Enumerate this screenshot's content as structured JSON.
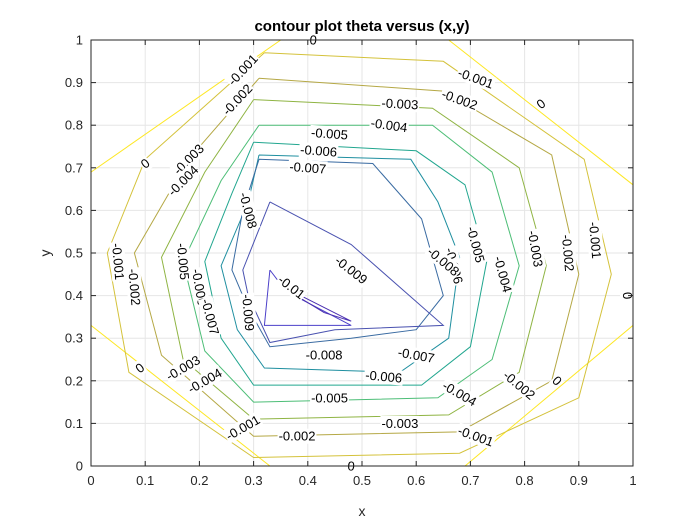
{
  "chart_data": {
    "type": "contour",
    "title": "contour plot theta versus (x,y)",
    "xlabel": "x",
    "ylabel": "y",
    "xlim": [
      0,
      1
    ],
    "ylim": [
      0,
      1
    ],
    "xticks": [
      "0",
      "0.1",
      "0.2",
      "0.3",
      "0.4",
      "0.5",
      "0.6",
      "0.7",
      "0.8",
      "0.9",
      "1"
    ],
    "yticks": [
      "0",
      "0.1",
      "0.2",
      "0.3",
      "0.4",
      "0.5",
      "0.6",
      "0.7",
      "0.8",
      "0.9",
      "1"
    ],
    "grid": true,
    "levels": [
      {
        "value": 0,
        "label": "0",
        "color": "#fde725",
        "points": [
          [
            0.35,
            1.0
          ],
          [
            0.66,
            1.0
          ],
          [
            1.0,
            0.66
          ],
          [
            1.0,
            0.33
          ],
          [
            0.69,
            0.0
          ],
          [
            0.33,
            0.0
          ],
          [
            0.0,
            0.33
          ],
          [
            0.0,
            0.69
          ],
          [
            0.35,
            1.0
          ]
        ],
        "labels": [
          [
            0.41,
            1.0,
            -5
          ],
          [
            0.83,
            0.85,
            38
          ],
          [
            0.1,
            0.71,
            38
          ],
          [
            0.99,
            0.4,
            -85
          ],
          [
            0.09,
            0.23,
            38
          ],
          [
            0.48,
            0.0,
            -4
          ],
          [
            0.86,
            0.2,
            -45
          ]
        ]
      },
      {
        "value": -0.001,
        "label": "-0.001",
        "color": "#d4c23b",
        "points": [
          [
            0.32,
            0.97
          ],
          [
            0.65,
            0.95
          ],
          [
            0.91,
            0.72
          ],
          [
            0.96,
            0.45
          ],
          [
            0.9,
            0.16
          ],
          [
            0.68,
            0.03
          ],
          [
            0.3,
            0.02
          ],
          [
            0.07,
            0.22
          ],
          [
            0.03,
            0.5
          ],
          [
            0.1,
            0.72
          ],
          [
            0.32,
            0.97
          ]
        ],
        "labels": [
          [
            0.28,
            0.93,
            47
          ],
          [
            0.71,
            0.91,
            -20
          ],
          [
            0.93,
            0.53,
            -85
          ],
          [
            0.05,
            0.48,
            -85
          ],
          [
            0.28,
            0.09,
            30
          ],
          [
            0.71,
            0.07,
            -20
          ]
        ]
      },
      {
        "value": -0.002,
        "label": "-0.002",
        "color": "#b5a845",
        "points": [
          [
            0.31,
            0.91
          ],
          [
            0.65,
            0.88
          ],
          [
            0.85,
            0.73
          ],
          [
            0.9,
            0.45
          ],
          [
            0.85,
            0.2
          ],
          [
            0.68,
            0.08
          ],
          [
            0.3,
            0.07
          ],
          [
            0.13,
            0.26
          ],
          [
            0.08,
            0.5
          ],
          [
            0.18,
            0.72
          ],
          [
            0.31,
            0.91
          ]
        ],
        "labels": [
          [
            0.27,
            0.86,
            47
          ],
          [
            0.68,
            0.86,
            -20
          ],
          [
            0.88,
            0.5,
            -85
          ],
          [
            0.08,
            0.42,
            -85
          ],
          [
            0.38,
            0.07,
            0
          ],
          [
            0.79,
            0.19,
            -40
          ]
        ]
      },
      {
        "value": -0.003,
        "label": "-0.003",
        "color": "#8fb443",
        "points": [
          [
            0.3,
            0.86
          ],
          [
            0.63,
            0.84
          ],
          [
            0.79,
            0.7
          ],
          [
            0.84,
            0.47
          ],
          [
            0.79,
            0.22
          ],
          [
            0.66,
            0.12
          ],
          [
            0.3,
            0.11
          ],
          [
            0.17,
            0.25
          ],
          [
            0.13,
            0.49
          ],
          [
            0.21,
            0.69
          ],
          [
            0.3,
            0.86
          ]
        ],
        "labels": [
          [
            0.57,
            0.85,
            -3
          ],
          [
            0.18,
            0.72,
            45
          ],
          [
            0.82,
            0.51,
            -80
          ],
          [
            0.57,
            0.1,
            0
          ],
          [
            0.17,
            0.23,
            30
          ]
        ]
      },
      {
        "value": -0.004,
        "label": "-0.004",
        "color": "#4dbe77",
        "points": [
          [
            0.31,
            0.8
          ],
          [
            0.63,
            0.8
          ],
          [
            0.74,
            0.69
          ],
          [
            0.79,
            0.47
          ],
          [
            0.74,
            0.25
          ],
          [
            0.64,
            0.16
          ],
          [
            0.3,
            0.15
          ],
          [
            0.21,
            0.27
          ],
          [
            0.17,
            0.48
          ],
          [
            0.24,
            0.67
          ],
          [
            0.31,
            0.8
          ]
        ],
        "labels": [
          [
            0.55,
            0.8,
            -8
          ],
          [
            0.17,
            0.67,
            45
          ],
          [
            0.76,
            0.45,
            -75
          ],
          [
            0.68,
            0.17,
            -30
          ],
          [
            0.21,
            0.2,
            30
          ]
        ]
      },
      {
        "value": -0.005,
        "label": "-0.005",
        "color": "#21a68f",
        "points": [
          [
            0.3,
            0.76
          ],
          [
            0.6,
            0.74
          ],
          [
            0.69,
            0.66
          ],
          [
            0.73,
            0.48
          ],
          [
            0.7,
            0.28
          ],
          [
            0.61,
            0.19
          ],
          [
            0.3,
            0.19
          ],
          [
            0.24,
            0.3
          ],
          [
            0.21,
            0.48
          ],
          [
            0.26,
            0.64
          ],
          [
            0.3,
            0.76
          ]
        ],
        "labels": [
          [
            0.44,
            0.78,
            -4
          ],
          [
            0.17,
            0.48,
            -85
          ],
          [
            0.71,
            0.52,
            -75
          ],
          [
            0.44,
            0.16,
            0
          ]
        ]
      },
      {
        "value": -0.006,
        "label": "-0.006",
        "color": "#1f8fa0",
        "points": [
          [
            0.31,
            0.73
          ],
          [
            0.59,
            0.72
          ],
          [
            0.64,
            0.62
          ],
          [
            0.68,
            0.49
          ],
          [
            0.66,
            0.3
          ],
          [
            0.57,
            0.22
          ],
          [
            0.32,
            0.23
          ],
          [
            0.27,
            0.32
          ],
          [
            0.24,
            0.47
          ],
          [
            0.29,
            0.62
          ],
          [
            0.31,
            0.73
          ]
        ],
        "labels": [
          [
            0.42,
            0.74,
            -4
          ],
          [
            0.2,
            0.42,
            -80
          ],
          [
            0.67,
            0.47,
            -75
          ],
          [
            0.54,
            0.21,
            -5
          ]
        ]
      },
      {
        "value": -0.007,
        "label": "-0.007",
        "color": "#3a6ba2",
        "points": [
          [
            0.31,
            0.72
          ],
          [
            0.52,
            0.71
          ],
          [
            0.61,
            0.58
          ],
          [
            0.65,
            0.4
          ],
          [
            0.6,
            0.32
          ],
          [
            0.48,
            0.3
          ],
          [
            0.33,
            0.28
          ],
          [
            0.29,
            0.37
          ],
          [
            0.26,
            0.46
          ],
          [
            0.28,
            0.6
          ],
          [
            0.31,
            0.72
          ]
        ],
        "labels": [
          [
            0.4,
            0.7,
            -4
          ],
          [
            0.22,
            0.35,
            -75
          ],
          [
            0.6,
            0.26,
            -10
          ]
        ]
      },
      {
        "value": -0.008,
        "label": "-0.008",
        "color": "#4a52b0",
        "points": [
          [
            0.33,
            0.62
          ],
          [
            0.48,
            0.52
          ],
          [
            0.65,
            0.33
          ],
          [
            0.45,
            0.32
          ],
          [
            0.33,
            0.29
          ],
          [
            0.29,
            0.4
          ],
          [
            0.28,
            0.46
          ],
          [
            0.33,
            0.62
          ]
        ],
        "labels": [
          [
            0.29,
            0.6,
            -75
          ],
          [
            0.65,
            0.48,
            -40
          ],
          [
            0.43,
            0.26,
            0
          ]
        ]
      },
      {
        "value": -0.009,
        "label": "-0.009",
        "color": "#4c40c9",
        "points": [
          [
            0.33,
            0.46
          ],
          [
            0.32,
            0.33
          ],
          [
            0.48,
            0.33
          ],
          [
            0.36,
            0.41
          ],
          [
            0.33,
            0.46
          ]
        ],
        "labels": [
          [
            0.48,
            0.46,
            -38
          ],
          [
            0.29,
            0.36,
            -85
          ]
        ]
      },
      {
        "value": -0.01,
        "label": "-0.01",
        "color": "#4a2fb0",
        "points": [
          [
            0.34,
            0.43
          ],
          [
            0.43,
            0.36
          ],
          [
            0.48,
            0.34
          ],
          [
            0.34,
            0.43
          ]
        ],
        "labels": [
          [
            0.37,
            0.42,
            -38
          ]
        ]
      }
    ]
  }
}
